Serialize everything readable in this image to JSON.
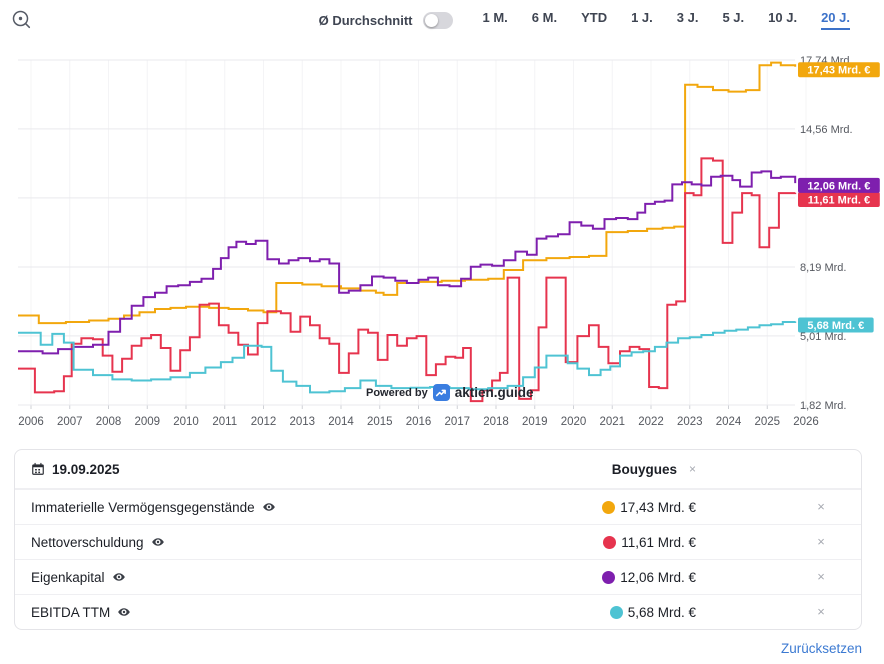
{
  "topbar": {
    "average_toggle": {
      "label": "Ø Durchschnitt",
      "state": "off"
    },
    "ranges": [
      {
        "label": "1 M.",
        "active": false
      },
      {
        "label": "6 M.",
        "active": false
      },
      {
        "label": "YTD",
        "active": false
      },
      {
        "label": "1 J.",
        "active": false
      },
      {
        "label": "3 J.",
        "active": false
      },
      {
        "label": "5 J.",
        "active": false
      },
      {
        "label": "10 J.",
        "active": false
      },
      {
        "label": "20 J.",
        "active": true
      }
    ]
  },
  "chart_data": {
    "type": "line",
    "step": true,
    "grid": true,
    "unit": "Mrd. €",
    "x_range": [
      2005.67,
      2026
    ],
    "x_ticks": [
      2006,
      2007,
      2008,
      2009,
      2010,
      2011,
      2012,
      2013,
      2014,
      2015,
      2016,
      2017,
      2018,
      2019,
      2020,
      2021,
      2022,
      2023,
      2024,
      2025,
      2026
    ],
    "y_ticks": [
      {
        "value": 17.74,
        "label": "17,74 Mrd."
      },
      {
        "value": 14.56,
        "label": "14,56 Mrd."
      },
      {
        "value": 11.38,
        "label": null
      },
      {
        "value": 8.19,
        "label": "8,19 Mrd."
      },
      {
        "value": 5.01,
        "label": "5,01 Mrd."
      },
      {
        "value": 1.82,
        "label": "1,82 Mrd."
      }
    ],
    "series": [
      {
        "name": "Immaterielle Vermögensgegenstände",
        "color": "#F2A70D",
        "end_label": "17,43 Mrd. €",
        "end_value": 17.43,
        "points": [
          [
            2005.7,
            5.95
          ],
          [
            2006.2,
            5.6
          ],
          [
            2006.9,
            5.65
          ],
          [
            2007.5,
            5.72
          ],
          [
            2008.0,
            5.8
          ],
          [
            2008.4,
            5.95
          ],
          [
            2008.8,
            6.1
          ],
          [
            2009.2,
            6.25
          ],
          [
            2009.6,
            6.3
          ],
          [
            2010.0,
            6.35
          ],
          [
            2010.6,
            6.3
          ],
          [
            2011.1,
            6.25
          ],
          [
            2011.6,
            6.18
          ],
          [
            2012.0,
            6.1
          ],
          [
            2012.33,
            7.45
          ],
          [
            2013.0,
            7.38
          ],
          [
            2013.5,
            7.3
          ],
          [
            2014.0,
            7.2
          ],
          [
            2014.5,
            7.1
          ],
          [
            2014.9,
            7.0
          ],
          [
            2015.1,
            6.9
          ],
          [
            2015.45,
            7.45
          ],
          [
            2016.0,
            7.5
          ],
          [
            2016.6,
            7.55
          ],
          [
            2017.2,
            7.6
          ],
          [
            2017.8,
            7.65
          ],
          [
            2018.2,
            8.05
          ],
          [
            2018.7,
            8.5
          ],
          [
            2019.3,
            8.6
          ],
          [
            2019.9,
            8.65
          ],
          [
            2020.4,
            8.7
          ],
          [
            2020.85,
            9.8
          ],
          [
            2021.4,
            9.85
          ],
          [
            2021.9,
            9.95
          ],
          [
            2022.3,
            10.0
          ],
          [
            2022.6,
            10.05
          ],
          [
            2022.88,
            16.6
          ],
          [
            2023.2,
            16.5
          ],
          [
            2023.6,
            16.35
          ],
          [
            2024.0,
            16.28
          ],
          [
            2024.45,
            16.35
          ],
          [
            2024.8,
            17.5
          ],
          [
            2025.1,
            17.62
          ],
          [
            2025.35,
            17.5
          ],
          [
            2025.72,
            17.43
          ]
        ]
      },
      {
        "name": "Nettoverschuldung",
        "color": "#E6344E",
        "end_label": "11,61 Mrd. €",
        "end_value": 11.61,
        "points": [
          [
            2005.7,
            3.5
          ],
          [
            2006.1,
            2.4
          ],
          [
            2006.6,
            2.45
          ],
          [
            2006.85,
            3.15
          ],
          [
            2007.05,
            4.65
          ],
          [
            2007.3,
            4.9
          ],
          [
            2007.6,
            4.85
          ],
          [
            2007.85,
            4.1
          ],
          [
            2008.1,
            3.35
          ],
          [
            2008.35,
            3.95
          ],
          [
            2008.6,
            4.55
          ],
          [
            2008.85,
            4.9
          ],
          [
            2009.1,
            5.05
          ],
          [
            2009.35,
            4.45
          ],
          [
            2009.6,
            3.4
          ],
          [
            2009.85,
            4.35
          ],
          [
            2010.1,
            4.95
          ],
          [
            2010.35,
            6.45
          ],
          [
            2010.6,
            6.5
          ],
          [
            2010.85,
            5.5
          ],
          [
            2011.1,
            5.15
          ],
          [
            2011.35,
            4.6
          ],
          [
            2011.6,
            4.15
          ],
          [
            2011.85,
            5.6
          ],
          [
            2012.1,
            6.15
          ],
          [
            2012.45,
            6.05
          ],
          [
            2012.7,
            5.2
          ],
          [
            2012.95,
            5.9
          ],
          [
            2013.2,
            5.5
          ],
          [
            2013.45,
            4.9
          ],
          [
            2013.7,
            4.65
          ],
          [
            2013.95,
            3.3
          ],
          [
            2014.2,
            4.2
          ],
          [
            2014.45,
            5.3
          ],
          [
            2014.7,
            5.15
          ],
          [
            2014.95,
            3.9
          ],
          [
            2015.2,
            5.05
          ],
          [
            2015.45,
            4.55
          ],
          [
            2015.7,
            4.9
          ],
          [
            2015.95,
            5.0
          ],
          [
            2016.2,
            3.2
          ],
          [
            2016.45,
            3.7
          ],
          [
            2016.7,
            4.05
          ],
          [
            2016.95,
            4.0
          ],
          [
            2017.15,
            4.45
          ],
          [
            2017.35,
            2.0
          ],
          [
            2017.65,
            2.5
          ],
          [
            2017.9,
            2.95
          ],
          [
            2018.1,
            3.3
          ],
          [
            2018.3,
            7.7
          ],
          [
            2018.6,
            2.1
          ],
          [
            2018.9,
            2.5
          ],
          [
            2019.1,
            5.4
          ],
          [
            2019.3,
            7.7
          ],
          [
            2019.8,
            3.8
          ],
          [
            2020.1,
            5.0
          ],
          [
            2020.4,
            5.5
          ],
          [
            2020.65,
            4.5
          ],
          [
            2020.9,
            3.75
          ],
          [
            2021.2,
            4.3
          ],
          [
            2021.45,
            4.5
          ],
          [
            2021.7,
            4.4
          ],
          [
            2021.95,
            2.65
          ],
          [
            2022.2,
            2.6
          ],
          [
            2022.42,
            6.45
          ],
          [
            2022.65,
            6.6
          ],
          [
            2022.88,
            11.6
          ],
          [
            2023.1,
            11.5
          ],
          [
            2023.3,
            13.2
          ],
          [
            2023.6,
            13.1
          ],
          [
            2023.85,
            9.3
          ],
          [
            2024.1,
            10.7
          ],
          [
            2024.35,
            11.6
          ],
          [
            2024.6,
            11.5
          ],
          [
            2024.8,
            9.1
          ],
          [
            2025.05,
            10.0
          ],
          [
            2025.3,
            11.6
          ],
          [
            2025.72,
            11.61
          ]
        ]
      },
      {
        "name": "Eigenkapital",
        "color": "#7E1FAE",
        "end_label": "12,06 Mrd. €",
        "end_value": 12.06,
        "points": [
          [
            2005.7,
            4.3
          ],
          [
            2006.3,
            4.2
          ],
          [
            2006.7,
            4.4
          ],
          [
            2007.1,
            4.5
          ],
          [
            2007.6,
            4.6
          ],
          [
            2008.0,
            5.2
          ],
          [
            2008.3,
            5.8
          ],
          [
            2008.6,
            6.4
          ],
          [
            2008.9,
            6.8
          ],
          [
            2009.2,
            7.0
          ],
          [
            2009.5,
            7.3
          ],
          [
            2009.8,
            7.35
          ],
          [
            2010.1,
            7.5
          ],
          [
            2010.4,
            7.65
          ],
          [
            2010.7,
            8.1
          ],
          [
            2010.9,
            8.6
          ],
          [
            2011.1,
            9.1
          ],
          [
            2011.3,
            9.35
          ],
          [
            2011.55,
            9.25
          ],
          [
            2011.8,
            9.4
          ],
          [
            2012.1,
            8.55
          ],
          [
            2012.4,
            8.35
          ],
          [
            2012.65,
            8.5
          ],
          [
            2012.9,
            8.6
          ],
          [
            2013.2,
            8.45
          ],
          [
            2013.45,
            8.55
          ],
          [
            2013.7,
            8.35
          ],
          [
            2013.95,
            7.0
          ],
          [
            2014.2,
            7.1
          ],
          [
            2014.5,
            7.35
          ],
          [
            2014.8,
            7.75
          ],
          [
            2015.1,
            7.7
          ],
          [
            2015.4,
            7.55
          ],
          [
            2015.7,
            7.45
          ],
          [
            2016.0,
            7.6
          ],
          [
            2016.25,
            7.7
          ],
          [
            2016.5,
            7.35
          ],
          [
            2016.8,
            7.3
          ],
          [
            2017.1,
            7.65
          ],
          [
            2017.35,
            8.2
          ],
          [
            2017.6,
            8.3
          ],
          [
            2017.9,
            8.25
          ],
          [
            2018.2,
            8.5
          ],
          [
            2018.5,
            8.9
          ],
          [
            2018.8,
            8.75
          ],
          [
            2019.05,
            9.5
          ],
          [
            2019.3,
            9.6
          ],
          [
            2019.6,
            9.7
          ],
          [
            2019.9,
            10.25
          ],
          [
            2020.2,
            10.1
          ],
          [
            2020.5,
            9.95
          ],
          [
            2020.8,
            10.4
          ],
          [
            2021.1,
            10.45
          ],
          [
            2021.4,
            10.4
          ],
          [
            2021.65,
            10.7
          ],
          [
            2021.85,
            11.1
          ],
          [
            2022.1,
            11.2
          ],
          [
            2022.35,
            11.25
          ],
          [
            2022.55,
            12.0
          ],
          [
            2022.8,
            12.1
          ],
          [
            2023.05,
            12.0
          ],
          [
            2023.3,
            11.95
          ],
          [
            2023.55,
            12.35
          ],
          [
            2023.8,
            12.4
          ],
          [
            2024.1,
            12.2
          ],
          [
            2024.3,
            11.9
          ],
          [
            2024.6,
            12.55
          ],
          [
            2024.85,
            12.6
          ],
          [
            2025.1,
            12.3
          ],
          [
            2025.35,
            12.35
          ],
          [
            2025.72,
            12.06
          ]
        ]
      },
      {
        "name": "EBITDA TTM",
        "color": "#4EC3D3",
        "end_label": "5,68 Mrd. €",
        "end_value": 5.68,
        "points": [
          [
            2005.7,
            5.15
          ],
          [
            2006.25,
            4.6
          ],
          [
            2006.55,
            5.1
          ],
          [
            2006.85,
            4.7
          ],
          [
            2007.1,
            3.45
          ],
          [
            2007.6,
            3.2
          ],
          [
            2008.1,
            3.0
          ],
          [
            2008.6,
            2.95
          ],
          [
            2009.1,
            3.0
          ],
          [
            2009.6,
            3.1
          ],
          [
            2010.1,
            3.3
          ],
          [
            2010.5,
            3.55
          ],
          [
            2010.9,
            3.8
          ],
          [
            2011.2,
            4.0
          ],
          [
            2011.5,
            4.55
          ],
          [
            2011.95,
            4.5
          ],
          [
            2012.2,
            3.4
          ],
          [
            2012.5,
            2.9
          ],
          [
            2012.85,
            2.7
          ],
          [
            2013.2,
            2.4
          ],
          [
            2013.7,
            2.45
          ],
          [
            2014.1,
            2.6
          ],
          [
            2014.5,
            2.95
          ],
          [
            2014.9,
            2.7
          ],
          [
            2015.3,
            2.6
          ],
          [
            2015.8,
            2.62
          ],
          [
            2016.3,
            2.65
          ],
          [
            2016.8,
            2.6
          ],
          [
            2017.3,
            2.55
          ],
          [
            2017.8,
            2.6
          ],
          [
            2018.3,
            2.7
          ],
          [
            2018.7,
            3.1
          ],
          [
            2019.0,
            3.55
          ],
          [
            2019.3,
            4.1
          ],
          [
            2019.85,
            3.75
          ],
          [
            2020.1,
            3.5
          ],
          [
            2020.4,
            3.2
          ],
          [
            2020.7,
            3.45
          ],
          [
            2020.95,
            3.6
          ],
          [
            2021.2,
            4.1
          ],
          [
            2021.5,
            4.25
          ],
          [
            2021.8,
            4.3
          ],
          [
            2022.1,
            4.5
          ],
          [
            2022.4,
            4.7
          ],
          [
            2022.7,
            4.9
          ],
          [
            2023.0,
            4.95
          ],
          [
            2023.3,
            5.05
          ],
          [
            2023.6,
            5.15
          ],
          [
            2023.9,
            5.25
          ],
          [
            2024.2,
            5.3
          ],
          [
            2024.5,
            5.4
          ],
          [
            2024.8,
            5.5
          ],
          [
            2025.1,
            5.55
          ],
          [
            2025.4,
            5.65
          ],
          [
            2025.72,
            5.68
          ]
        ]
      }
    ],
    "watermark": {
      "prefix": "Powered by",
      "brand": "aktien.guide"
    },
    "legend_position": "none"
  },
  "table": {
    "date": "19.09.2025",
    "company": "Bouygues",
    "rows": [
      {
        "label": "Immaterielle Vermögensgegenstände",
        "value": "17,43 Mrd. €",
        "color": "#F2A70D"
      },
      {
        "label": "Nettoverschuldung",
        "value": "11,61 Mrd. €",
        "color": "#E6344E"
      },
      {
        "label": "Eigenkapital",
        "value": "12,06 Mrd. €",
        "color": "#7E1FAE"
      },
      {
        "label": "EBITDA TTM",
        "value": "5,68 Mrd. €",
        "color": "#4EC3D3"
      }
    ],
    "reset_label": "Zurücksetzen"
  },
  "colors": {
    "accent_blue": "#3c72c9",
    "grid": "#e9e9ed",
    "axis_text": "#55585f"
  }
}
